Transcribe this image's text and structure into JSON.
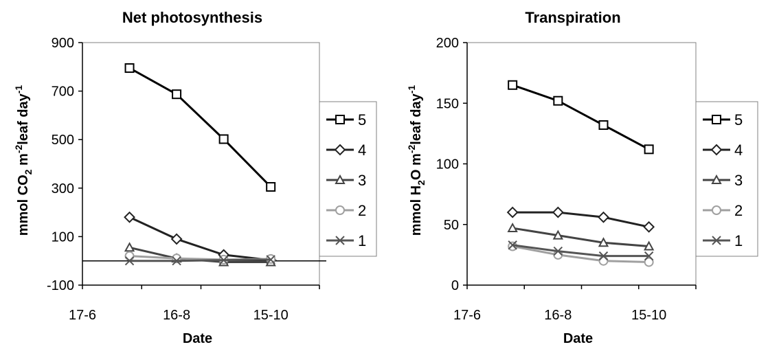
{
  "chart_data": [
    {
      "type": "line",
      "title": "Net photosynthesis",
      "xlabel": "Date",
      "ylabel": {
        "prefix": "mmol CO",
        "sub1": "2",
        "mid1": " m",
        "sup1": "-2",
        "mid2": "leaf day",
        "sup2": "-1"
      },
      "x_ticks": [
        "17-6",
        "16-8",
        "15-10"
      ],
      "x": [
        "17-7",
        "16-8",
        "15-9",
        "15-10"
      ],
      "ylim": [
        -100,
        900
      ],
      "y_ticks": [
        -100,
        100,
        300,
        500,
        700,
        900
      ],
      "reference_line_y": 0,
      "series": [
        {
          "name": "5",
          "marker": "square",
          "color": "#000000",
          "values": [
            795,
            687,
            502,
            305
          ]
        },
        {
          "name": "4",
          "marker": "diamond",
          "color": "#222222",
          "values": [
            180,
            90,
            25,
            3
          ]
        },
        {
          "name": "3",
          "marker": "triangle",
          "color": "#444444",
          "values": [
            55,
            10,
            -5,
            -5
          ]
        },
        {
          "name": "2",
          "marker": "circle",
          "color": "#a0a0a0",
          "values": [
            20,
            10,
            5,
            8
          ]
        },
        {
          "name": "1",
          "marker": "x",
          "color": "#555555",
          "values": [
            0,
            0,
            3,
            5
          ]
        }
      ]
    },
    {
      "type": "line",
      "title": "Transpiration",
      "xlabel": "Date",
      "ylabel": {
        "prefix": "mmol H",
        "sub1": "2",
        "mid1": "O m",
        "sup1": "-2",
        "mid2": "leaf day",
        "sup2": "-1"
      },
      "x_ticks": [
        "17-6",
        "16-8",
        "15-10"
      ],
      "x": [
        "17-7",
        "16-8",
        "15-9",
        "15-10"
      ],
      "ylim": [
        0,
        200
      ],
      "y_ticks": [
        0,
        50,
        100,
        150,
        200
      ],
      "series": [
        {
          "name": "5",
          "marker": "square",
          "color": "#000000",
          "values": [
            165,
            152,
            132,
            112
          ]
        },
        {
          "name": "4",
          "marker": "diamond",
          "color": "#222222",
          "values": [
            60,
            60,
            56,
            48
          ]
        },
        {
          "name": "3",
          "marker": "triangle",
          "color": "#444444",
          "values": [
            47,
            41,
            35,
            32
          ]
        },
        {
          "name": "2",
          "marker": "circle",
          "color": "#a0a0a0",
          "values": [
            32,
            25,
            20,
            19
          ]
        },
        {
          "name": "1",
          "marker": "x",
          "color": "#555555",
          "values": [
            33,
            28,
            24,
            24
          ]
        }
      ]
    }
  ]
}
